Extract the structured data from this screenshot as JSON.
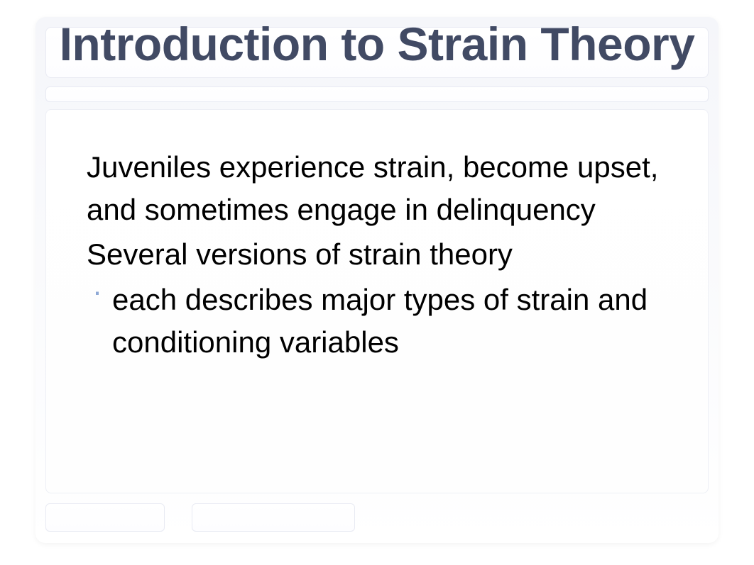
{
  "slide": {
    "title": "Introduction to Strain Theory",
    "title_color": "#414a64",
    "title_fontsize": 66,
    "title_fontweight": 700,
    "bullets": [
      {
        "level": 1,
        "text": "Juveniles experience strain, become upset, and sometimes engage in delinquency"
      },
      {
        "level": 1,
        "text": "Several versions of strain theory"
      },
      {
        "level": 2,
        "text": "each describes major types of strain and conditioning variables"
      }
    ],
    "body_fontsize": 42,
    "body_color": "#000000",
    "bullet_marker_color": "#8fa9d6",
    "frame_bg_gradient": [
      "#f5f6fa",
      "#ffffff"
    ],
    "box_border_color": "rgba(200,205,225,0.4)"
  }
}
